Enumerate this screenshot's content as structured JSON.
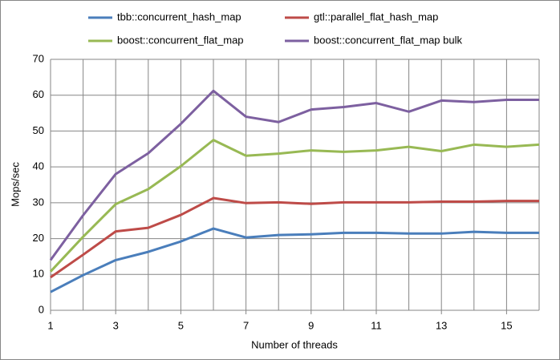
{
  "chart_data": {
    "type": "line",
    "x": [
      1,
      2,
      3,
      4,
      5,
      6,
      7,
      8,
      9,
      10,
      11,
      12,
      13,
      14,
      15,
      16
    ],
    "xlim": [
      1,
      16
    ],
    "xticks": [
      1,
      3,
      5,
      7,
      9,
      11,
      13,
      15
    ],
    "ylim": [
      0,
      70
    ],
    "yticks": [
      0,
      10,
      20,
      30,
      40,
      50,
      60,
      70
    ],
    "xlabel": "Number of threads",
    "ylabel": "Mops/sec",
    "grid": true,
    "series": [
      {
        "name": "tbb::concurrent_hash_map",
        "color": "#4a7ebb",
        "values": [
          5.1,
          9.8,
          14,
          16.3,
          19.2,
          22.8,
          20.3,
          21,
          21.2,
          21.6,
          21.6,
          21.4,
          21.4,
          21.9,
          21.6,
          21.6
        ]
      },
      {
        "name": "gtl::parallel_flat_hash_map",
        "color": "#be4b48",
        "values": [
          9.2,
          15.5,
          22,
          23,
          26.6,
          31.3,
          29.9,
          30.1,
          29.7,
          30.1,
          30.1,
          30.1,
          30.3,
          30.3,
          30.5,
          30.5
        ]
      },
      {
        "name": "boost::concurrent_flat_map",
        "color": "#98b954",
        "values": [
          10.8,
          20.5,
          29.6,
          33.8,
          40.2,
          47.5,
          43.1,
          43.7,
          44.6,
          44.2,
          44.6,
          45.6,
          44.4,
          46.2,
          45.6,
          46.2
        ]
      },
      {
        "name": "boost::concurrent_flat_map bulk",
        "color": "#7d60a0",
        "values": [
          14,
          26.5,
          38,
          43.8,
          52,
          61.2,
          54,
          52.5,
          56,
          56.7,
          57.8,
          55.4,
          58.5,
          58.1,
          58.7,
          58.7
        ]
      }
    ]
  }
}
